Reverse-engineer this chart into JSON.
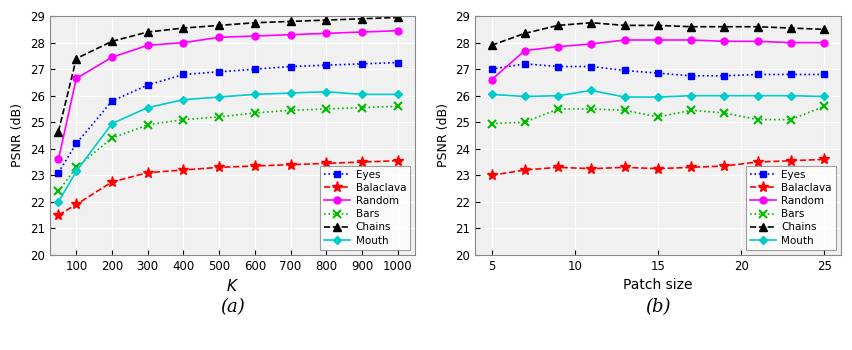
{
  "plot_a": {
    "x": [
      50,
      100,
      200,
      300,
      400,
      500,
      600,
      700,
      800,
      900,
      1000
    ],
    "xlabel": "K",
    "ylabel": "PSNR (dB)",
    "ylim": [
      20,
      29
    ],
    "yticks": [
      20,
      21,
      22,
      23,
      24,
      25,
      26,
      27,
      28,
      29
    ],
    "xlim": [
      25,
      1050
    ],
    "xticks": [
      100,
      200,
      300,
      400,
      500,
      600,
      700,
      800,
      900,
      1000
    ],
    "label": "(a)",
    "series": {
      "Eyes": {
        "color": "#0000FF",
        "marker": "s",
        "linestyle": "dotted",
        "values": [
          23.1,
          24.2,
          25.8,
          26.4,
          26.8,
          26.9,
          27.0,
          27.1,
          27.15,
          27.2,
          27.25
        ]
      },
      "Balaclava": {
        "color": "#FF0000",
        "marker": "*",
        "linestyle": "dashed",
        "values": [
          21.5,
          21.9,
          22.75,
          23.1,
          23.2,
          23.3,
          23.35,
          23.4,
          23.45,
          23.5,
          23.55
        ]
      },
      "Random": {
        "color": "#FF00FF",
        "marker": "o",
        "linestyle": "solid",
        "values": [
          23.6,
          26.65,
          27.45,
          27.9,
          28.0,
          28.2,
          28.25,
          28.3,
          28.35,
          28.4,
          28.45
        ]
      },
      "Bars": {
        "color": "#00BB00",
        "marker": "x",
        "linestyle": "dotted",
        "values": [
          22.4,
          23.3,
          24.4,
          24.9,
          25.1,
          25.2,
          25.35,
          25.45,
          25.5,
          25.55,
          25.6
        ]
      },
      "Chains": {
        "color": "#000000",
        "marker": "^",
        "linestyle": "dashed",
        "values": [
          24.65,
          27.4,
          28.05,
          28.4,
          28.55,
          28.65,
          28.75,
          28.8,
          28.85,
          28.9,
          28.95
        ]
      },
      "Mouth": {
        "color": "#00CCCC",
        "marker": "D",
        "linestyle": "solid",
        "values": [
          22.0,
          23.15,
          24.95,
          25.55,
          25.85,
          25.95,
          26.05,
          26.1,
          26.15,
          26.05,
          26.05
        ]
      }
    }
  },
  "plot_b": {
    "x": [
      5,
      7,
      9,
      11,
      13,
      15,
      17,
      19,
      21,
      23,
      25
    ],
    "xlabel": "Patch size",
    "ylabel": "PSNR (dB)",
    "ylim": [
      20,
      29
    ],
    "yticks": [
      20,
      21,
      22,
      23,
      24,
      25,
      26,
      27,
      28,
      29
    ],
    "xlim": [
      4,
      26
    ],
    "xticks": [
      5,
      10,
      15,
      20,
      25
    ],
    "label": "(b)",
    "series": {
      "Eyes": {
        "color": "#0000FF",
        "marker": "s",
        "linestyle": "dotted",
        "values": [
          27.0,
          27.2,
          27.1,
          27.1,
          26.95,
          26.85,
          26.75,
          26.75,
          26.8,
          26.8,
          26.8
        ]
      },
      "Balaclava": {
        "color": "#FF0000",
        "marker": "*",
        "linestyle": "dashed",
        "values": [
          23.0,
          23.2,
          23.3,
          23.25,
          23.3,
          23.25,
          23.3,
          23.35,
          23.5,
          23.55,
          23.6
        ]
      },
      "Random": {
        "color": "#FF00FF",
        "marker": "o",
        "linestyle": "solid",
        "values": [
          26.6,
          27.7,
          27.85,
          27.95,
          28.1,
          28.1,
          28.1,
          28.05,
          28.05,
          28.0,
          28.0
        ]
      },
      "Bars": {
        "color": "#00BB00",
        "marker": "x",
        "linestyle": "dotted",
        "values": [
          24.95,
          25.0,
          25.5,
          25.5,
          25.45,
          25.2,
          25.45,
          25.35,
          25.1,
          25.1,
          25.6
        ]
      },
      "Chains": {
        "color": "#000000",
        "marker": "^",
        "linestyle": "dashed",
        "values": [
          27.9,
          28.35,
          28.65,
          28.75,
          28.65,
          28.65,
          28.6,
          28.6,
          28.6,
          28.55,
          28.5
        ]
      },
      "Mouth": {
        "color": "#00CCCC",
        "marker": "D",
        "linestyle": "solid",
        "values": [
          26.05,
          25.97,
          26.0,
          26.2,
          25.95,
          25.95,
          26.0,
          26.0,
          26.0,
          26.0,
          25.97
        ]
      }
    }
  },
  "background_color": "#f0f0f0",
  "grid_color": "#ffffff",
  "figure_bg": "#ffffff",
  "series_order": [
    "Eyes",
    "Balaclava",
    "Random",
    "Bars",
    "Chains",
    "Mouth"
  ]
}
